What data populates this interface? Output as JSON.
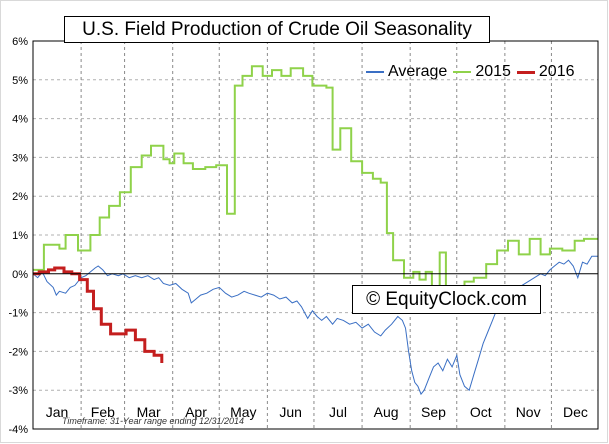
{
  "chart_data": {
    "type": "line",
    "title": "U.S. Field Production of Crude Oil Seasonality",
    "watermark": "© EquityClock.com",
    "timeframe_note": "Timeframe: 31-Year range ending 12/31/2014",
    "xlabel": "",
    "ylabel": "",
    "ylim": [
      -4,
      6
    ],
    "y_ticks": [
      "6%",
      "5%",
      "4%",
      "3%",
      "2%",
      "1%",
      "0%",
      "-1%",
      "-2%",
      "-3%",
      "-4%"
    ],
    "y_tick_values": [
      6,
      5,
      4,
      3,
      2,
      1,
      0,
      -1,
      -2,
      -3,
      -4
    ],
    "x_ticks": [
      "Jan",
      "Feb",
      "Mar",
      "Apr",
      "May",
      "Jun",
      "Jul",
      "Aug",
      "Sep",
      "Oct",
      "Nov",
      "Dec"
    ],
    "xlim": [
      1,
      365
    ],
    "grid": true,
    "legend_position": "top-right",
    "series": [
      {
        "name": "Average",
        "color": "#3a6fc4",
        "width": 1,
        "points": [
          [
            1,
            0
          ],
          [
            4,
            -0.1
          ],
          [
            7,
            0.05
          ],
          [
            10,
            -0.2
          ],
          [
            14,
            -0.35
          ],
          [
            16,
            -0.55
          ],
          [
            18,
            -0.45
          ],
          [
            22,
            -0.5
          ],
          [
            25,
            -0.35
          ],
          [
            28,
            -0.3
          ],
          [
            32,
            -0.1
          ],
          [
            35,
            -0.05
          ],
          [
            38,
            0.05
          ],
          [
            41,
            0.15
          ],
          [
            43,
            0.2
          ],
          [
            46,
            0.1
          ],
          [
            49,
            -0.05
          ],
          [
            52,
            0.0
          ],
          [
            56,
            -0.05
          ],
          [
            59,
            0.0
          ],
          [
            63,
            -0.1
          ],
          [
            67,
            -0.05
          ],
          [
            71,
            -0.1
          ],
          [
            75,
            -0.05
          ],
          [
            79,
            -0.15
          ],
          [
            82,
            -0.1
          ],
          [
            85,
            -0.25
          ],
          [
            89,
            -0.3
          ],
          [
            93,
            -0.25
          ],
          [
            97,
            -0.4
          ],
          [
            101,
            -0.5
          ],
          [
            103,
            -0.75
          ],
          [
            106,
            -0.65
          ],
          [
            109,
            -0.55
          ],
          [
            113,
            -0.5
          ],
          [
            117,
            -0.4
          ],
          [
            121,
            -0.35
          ],
          [
            125,
            -0.5
          ],
          [
            129,
            -0.6
          ],
          [
            133,
            -0.55
          ],
          [
            137,
            -0.45
          ],
          [
            140,
            -0.5
          ],
          [
            144,
            -0.55
          ],
          [
            148,
            -0.6
          ],
          [
            152,
            -0.5
          ],
          [
            156,
            -0.55
          ],
          [
            160,
            -0.65
          ],
          [
            164,
            -0.6
          ],
          [
            168,
            -0.75
          ],
          [
            171,
            -0.7
          ],
          [
            174,
            -0.85
          ],
          [
            176,
            -1.0
          ],
          [
            178,
            -1.15
          ],
          [
            181,
            -0.95
          ],
          [
            184,
            -1.1
          ],
          [
            187,
            -1.2
          ],
          [
            190,
            -1.1
          ],
          [
            194,
            -1.3
          ],
          [
            197,
            -1.15
          ],
          [
            201,
            -1.2
          ],
          [
            205,
            -1.3
          ],
          [
            209,
            -1.25
          ],
          [
            213,
            -1.4
          ],
          [
            217,
            -1.3
          ],
          [
            221,
            -1.5
          ],
          [
            225,
            -1.6
          ],
          [
            228,
            -1.45
          ],
          [
            232,
            -1.3
          ],
          [
            236,
            -1.1
          ],
          [
            239,
            -1.2
          ],
          [
            241,
            -1.4
          ],
          [
            243,
            -2.0
          ],
          [
            245,
            -2.5
          ],
          [
            247,
            -2.8
          ],
          [
            249,
            -2.9
          ],
          [
            251,
            -3.1
          ],
          [
            253,
            -3.0
          ],
          [
            256,
            -2.7
          ],
          [
            259,
            -2.4
          ],
          [
            262,
            -2.3
          ],
          [
            265,
            -2.5
          ],
          [
            268,
            -2.2
          ],
          [
            271,
            -2.4
          ],
          [
            274,
            -2.1
          ],
          [
            276,
            -2.6
          ],
          [
            279,
            -2.9
          ],
          [
            282,
            -3.0
          ],
          [
            285,
            -2.6
          ],
          [
            288,
            -2.2
          ],
          [
            291,
            -1.8
          ],
          [
            294,
            -1.5
          ],
          [
            297,
            -1.2
          ],
          [
            300,
            -0.9
          ],
          [
            304,
            -0.65
          ],
          [
            308,
            -0.45
          ],
          [
            312,
            -0.4
          ],
          [
            316,
            -0.3
          ],
          [
            320,
            -0.2
          ],
          [
            324,
            -0.1
          ],
          [
            328,
            0.0
          ],
          [
            331,
            -0.05
          ],
          [
            334,
            0.1
          ],
          [
            337,
            0.2
          ],
          [
            340,
            0.3
          ],
          [
            343,
            0.25
          ],
          [
            346,
            0.35
          ],
          [
            349,
            0.2
          ],
          [
            352,
            -0.1
          ],
          [
            355,
            0.3
          ],
          [
            358,
            0.25
          ],
          [
            361,
            0.45
          ],
          [
            365,
            0.45
          ]
        ]
      },
      {
        "name": "2015",
        "color": "#8fd24a",
        "width": 2,
        "points": [
          [
            1,
            0.1
          ],
          [
            8,
            0.1
          ],
          [
            8,
            0.75
          ],
          [
            18,
            0.75
          ],
          [
            18,
            0.65
          ],
          [
            22,
            0.65
          ],
          [
            22,
            1.0
          ],
          [
            30,
            1.0
          ],
          [
            30,
            0.6
          ],
          [
            38,
            0.6
          ],
          [
            38,
            1.0
          ],
          [
            44,
            1.0
          ],
          [
            44,
            1.45
          ],
          [
            50,
            1.45
          ],
          [
            50,
            1.75
          ],
          [
            57,
            1.75
          ],
          [
            57,
            2.1
          ],
          [
            64,
            2.1
          ],
          [
            64,
            2.75
          ],
          [
            71,
            2.75
          ],
          [
            71,
            3.05
          ],
          [
            77,
            3.05
          ],
          [
            77,
            3.3
          ],
          [
            85,
            3.3
          ],
          [
            85,
            2.95
          ],
          [
            89,
            2.95
          ],
          [
            89,
            2.85
          ],
          [
            92,
            2.85
          ],
          [
            92,
            3.1
          ],
          [
            98,
            3.1
          ],
          [
            98,
            2.85
          ],
          [
            104,
            2.85
          ],
          [
            104,
            2.7
          ],
          [
            112,
            2.7
          ],
          [
            112,
            2.75
          ],
          [
            119,
            2.75
          ],
          [
            119,
            2.8
          ],
          [
            126,
            2.8
          ],
          [
            126,
            1.55
          ],
          [
            131,
            1.55
          ],
          [
            131,
            4.85
          ],
          [
            136,
            4.85
          ],
          [
            136,
            5.1
          ],
          [
            142,
            5.1
          ],
          [
            142,
            5.35
          ],
          [
            149,
            5.35
          ],
          [
            149,
            5.1
          ],
          [
            155,
            5.1
          ],
          [
            155,
            5.25
          ],
          [
            161,
            5.25
          ],
          [
            161,
            5.1
          ],
          [
            167,
            5.1
          ],
          [
            167,
            5.3
          ],
          [
            175,
            5.3
          ],
          [
            175,
            5.1
          ],
          [
            181,
            5.1
          ],
          [
            181,
            4.85
          ],
          [
            190,
            4.85
          ],
          [
            190,
            4.8
          ],
          [
            194,
            4.8
          ],
          [
            194,
            3.2
          ],
          [
            199,
            3.2
          ],
          [
            199,
            3.75
          ],
          [
            206,
            3.75
          ],
          [
            206,
            2.9
          ],
          [
            213,
            2.9
          ],
          [
            213,
            2.6
          ],
          [
            220,
            2.6
          ],
          [
            220,
            2.45
          ],
          [
            225,
            2.45
          ],
          [
            225,
            2.35
          ],
          [
            229,
            2.35
          ],
          [
            229,
            1.05
          ],
          [
            233,
            1.05
          ],
          [
            233,
            0.35
          ],
          [
            240,
            0.35
          ],
          [
            240,
            -0.1
          ],
          [
            246,
            -0.1
          ],
          [
            246,
            0.05
          ],
          [
            250,
            0.05
          ],
          [
            250,
            -0.15
          ],
          [
            254,
            -0.15
          ],
          [
            254,
            0.05
          ],
          [
            258,
            0.05
          ],
          [
            258,
            -0.45
          ],
          [
            263,
            -0.45
          ],
          [
            263,
            0.55
          ],
          [
            267,
            0.55
          ],
          [
            267,
            -0.35
          ],
          [
            272,
            -0.35
          ],
          [
            272,
            -0.4
          ],
          [
            279,
            -0.4
          ],
          [
            279,
            -0.2
          ],
          [
            285,
            -0.2
          ],
          [
            285,
            -0.1
          ],
          [
            293,
            -0.1
          ],
          [
            293,
            0.25
          ],
          [
            300,
            0.25
          ],
          [
            300,
            0.6
          ],
          [
            307,
            0.6
          ],
          [
            307,
            0.85
          ],
          [
            314,
            0.85
          ],
          [
            314,
            0.5
          ],
          [
            321,
            0.5
          ],
          [
            321,
            0.9
          ],
          [
            328,
            0.9
          ],
          [
            328,
            0.5
          ],
          [
            334,
            0.5
          ],
          [
            334,
            0.65
          ],
          [
            342,
            0.65
          ],
          [
            342,
            0.6
          ],
          [
            350,
            0.6
          ],
          [
            350,
            0.85
          ],
          [
            356,
            0.85
          ],
          [
            356,
            0.9
          ],
          [
            365,
            0.9
          ]
        ]
      },
      {
        "name": "2016",
        "color": "#c41e1e",
        "width": 3,
        "points": [
          [
            1,
            0.0
          ],
          [
            5,
            0.0
          ],
          [
            5,
            0.05
          ],
          [
            11,
            0.05
          ],
          [
            11,
            0.1
          ],
          [
            15,
            0.1
          ],
          [
            15,
            0.15
          ],
          [
            21,
            0.15
          ],
          [
            21,
            0.05
          ],
          [
            26,
            0.05
          ],
          [
            26,
            0.0
          ],
          [
            31,
            0.0
          ],
          [
            31,
            -0.15
          ],
          [
            36,
            -0.15
          ],
          [
            36,
            -0.45
          ],
          [
            40,
            -0.45
          ],
          [
            40,
            -0.9
          ],
          [
            45,
            -0.9
          ],
          [
            45,
            -1.3
          ],
          [
            51,
            -1.3
          ],
          [
            51,
            -1.55
          ],
          [
            61,
            -1.55
          ],
          [
            61,
            -1.45
          ],
          [
            67,
            -1.45
          ],
          [
            67,
            -1.7
          ],
          [
            73,
            -1.7
          ],
          [
            73,
            -2.0
          ],
          [
            79,
            -2.0
          ],
          [
            79,
            -2.1
          ],
          [
            84,
            -2.1
          ],
          [
            84,
            -2.3
          ]
        ]
      }
    ]
  }
}
